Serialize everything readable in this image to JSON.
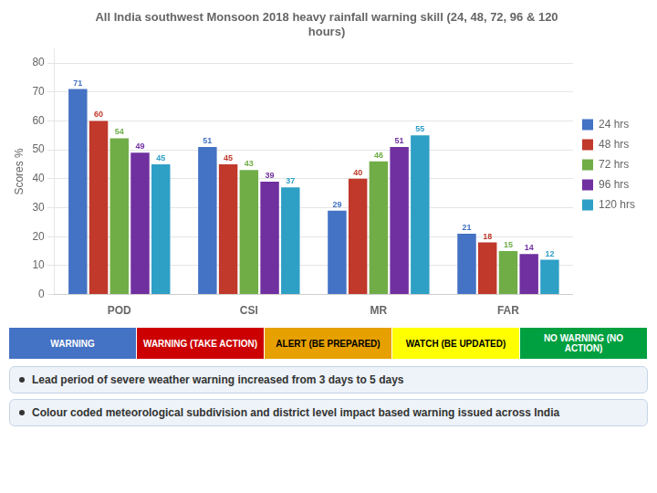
{
  "chart_data": {
    "type": "bar",
    "title": "All India southwest Monsoon 2018 heavy rainfall warning skill (24, 48, 72, 96 & 120\nhours)",
    "categories": [
      "POD",
      "CSI",
      "MR",
      "FAR"
    ],
    "series": [
      {
        "name": "24 hrs",
        "color": "#4472c4",
        "values": [
          71,
          51,
          29,
          21
        ]
      },
      {
        "name": "48 hrs",
        "color": "#c0392b",
        "values": [
          60,
          45,
          40,
          18
        ]
      },
      {
        "name": "72 hrs",
        "color": "#70ad47",
        "values": [
          54,
          43,
          46,
          15
        ]
      },
      {
        "name": "96 hrs",
        "color": "#7030a0",
        "values": [
          49,
          39,
          51,
          14
        ]
      },
      {
        "name": "120 hrs",
        "color": "#2e9fc5",
        "values": [
          45,
          37,
          55,
          12
        ]
      }
    ],
    "ylabel": "Scores %",
    "ylim": [
      0,
      85
    ],
    "yticks": [
      0,
      10,
      20,
      30,
      40,
      50,
      60,
      70,
      80
    ],
    "grid": true,
    "legend": "right",
    "data_labels": true,
    "annotations": [
      {
        "text": "WARNING",
        "color": "#4472c4"
      },
      {
        "text": "WARNING (TAKE ACTION)",
        "color": "#cc0000"
      },
      {
        "text": "ALERT (BE PREPARED)",
        "color": "#e6a000"
      },
      {
        "text": "WATCH (BE UPDATED)",
        "color": "#ffff00"
      },
      {
        "text": "NO WARNING (NO ACTION)",
        "color": "#00a040"
      },
      {
        "text": "Lead period of severe weather warning increased from 3 days to 5 days"
      },
      {
        "text": "Colour coded meteorological subdivision and district level impact based warning issued across India"
      }
    ]
  }
}
